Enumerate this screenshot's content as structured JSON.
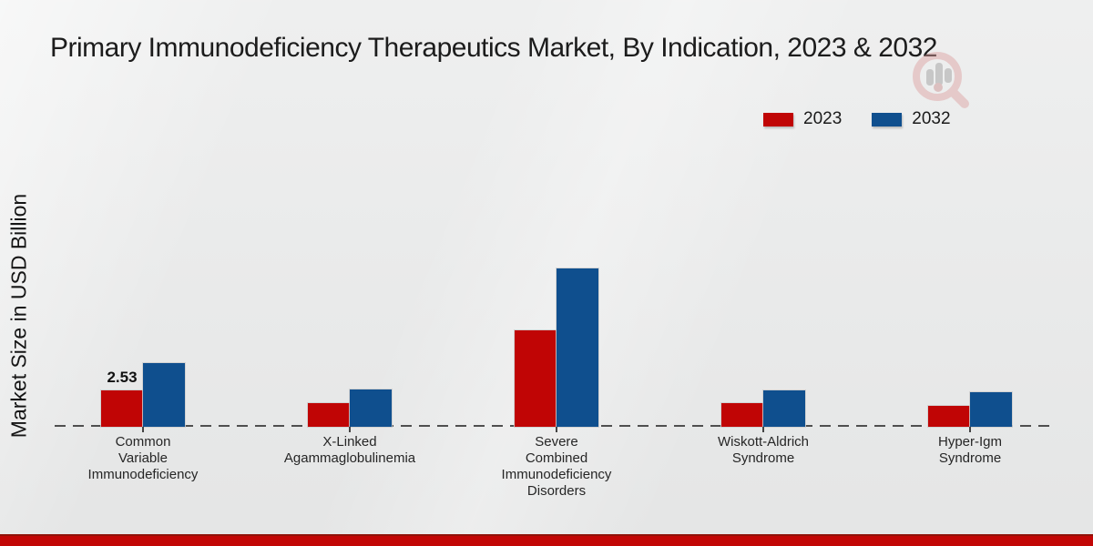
{
  "page": {
    "background_color": "#e9eaea",
    "footer_color": "#c20605",
    "footer_top_edge_color": "#8f1209"
  },
  "watermark": {
    "icon": "magnifier-bar-chart-logo"
  },
  "chart_data": {
    "type": "bar",
    "title": "Primary Immunodeficiency Therapeutics Market, By Indication, 2023 & 2032",
    "xlabel": "",
    "ylabel": "Market Size in USD Billion",
    "categories": [
      "Common Variable Immunodeficiency",
      "X-Linked Agammaglobulinemia",
      "Severe Combined Immunodeficiency Disorders",
      "Wiskott-Aldrich Syndrome",
      "Hyper-Igm Syndrome"
    ],
    "category_label_lines": [
      [
        "Common",
        "Variable",
        "Immunodeficiency"
      ],
      [
        "X-Linked",
        "Agammaglobulinemia"
      ],
      [
        "Severe",
        "Combined",
        "Immunodeficiency",
        "Disorders"
      ],
      [
        "Wiskott-Aldrich",
        "Syndrome"
      ],
      [
        "Hyper-Igm",
        "Syndrome"
      ]
    ],
    "series": [
      {
        "name": "2023",
        "color": "#c00505",
        "values": [
          2.53,
          1.66,
          6.72,
          1.66,
          1.45
        ]
      },
      {
        "name": "2032",
        "color": "#0f4f8e",
        "values": [
          4.43,
          2.58,
          11.01,
          2.53,
          2.42
        ]
      }
    ],
    "data_labels": [
      {
        "series_index": 0,
        "category_index": 0,
        "text": "2.53"
      }
    ],
    "legend_position": "top-right",
    "axis_line_style": "dashed",
    "grid": false,
    "ylim": [
      0,
      12
    ]
  }
}
